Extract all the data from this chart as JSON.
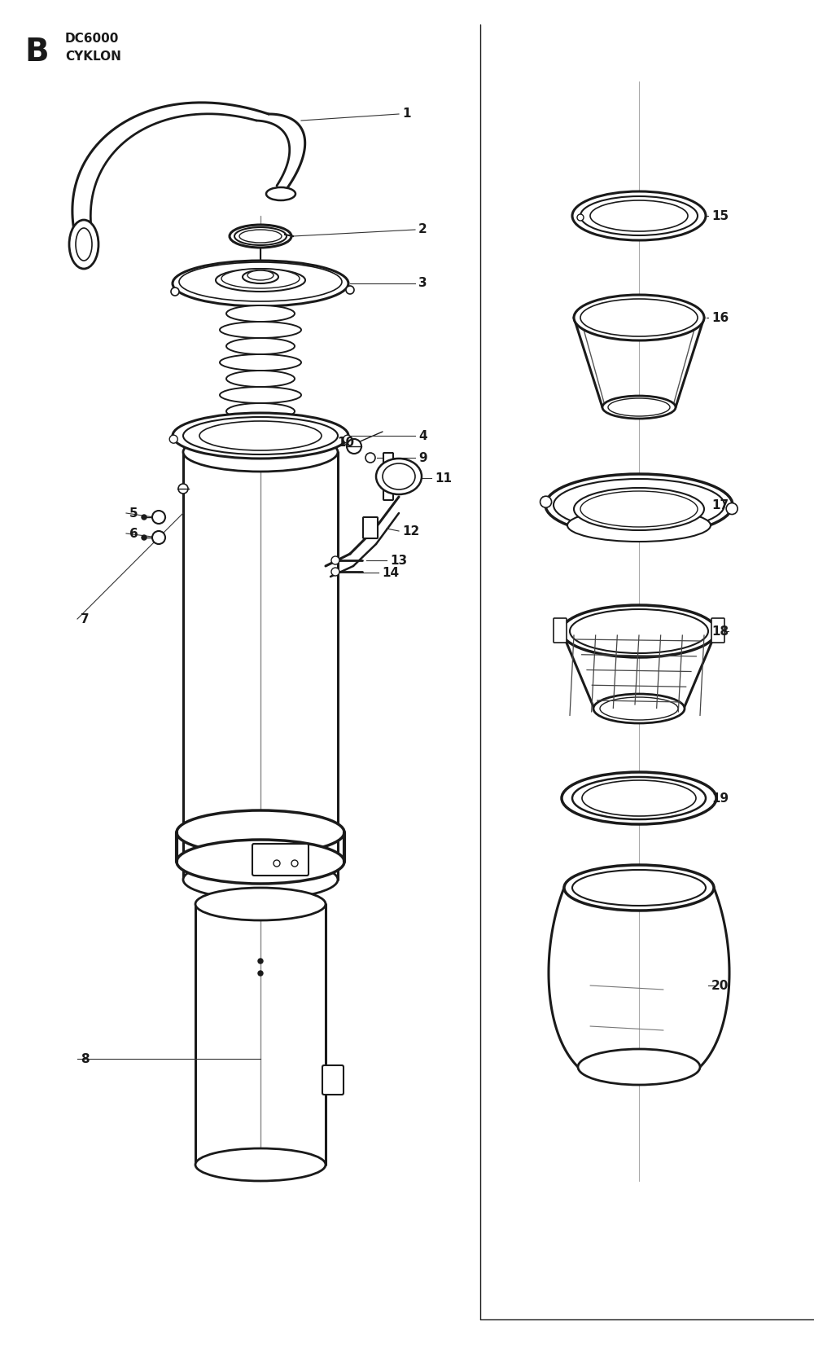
{
  "title_letter": "B",
  "title_line1": "DC6000",
  "title_line2": "CYKLON",
  "bg": "#ffffff",
  "lc": "#1a1a1a",
  "tc": "#1a1a1a",
  "figsize": [
    10.0,
    16.6
  ],
  "dpi": 100
}
